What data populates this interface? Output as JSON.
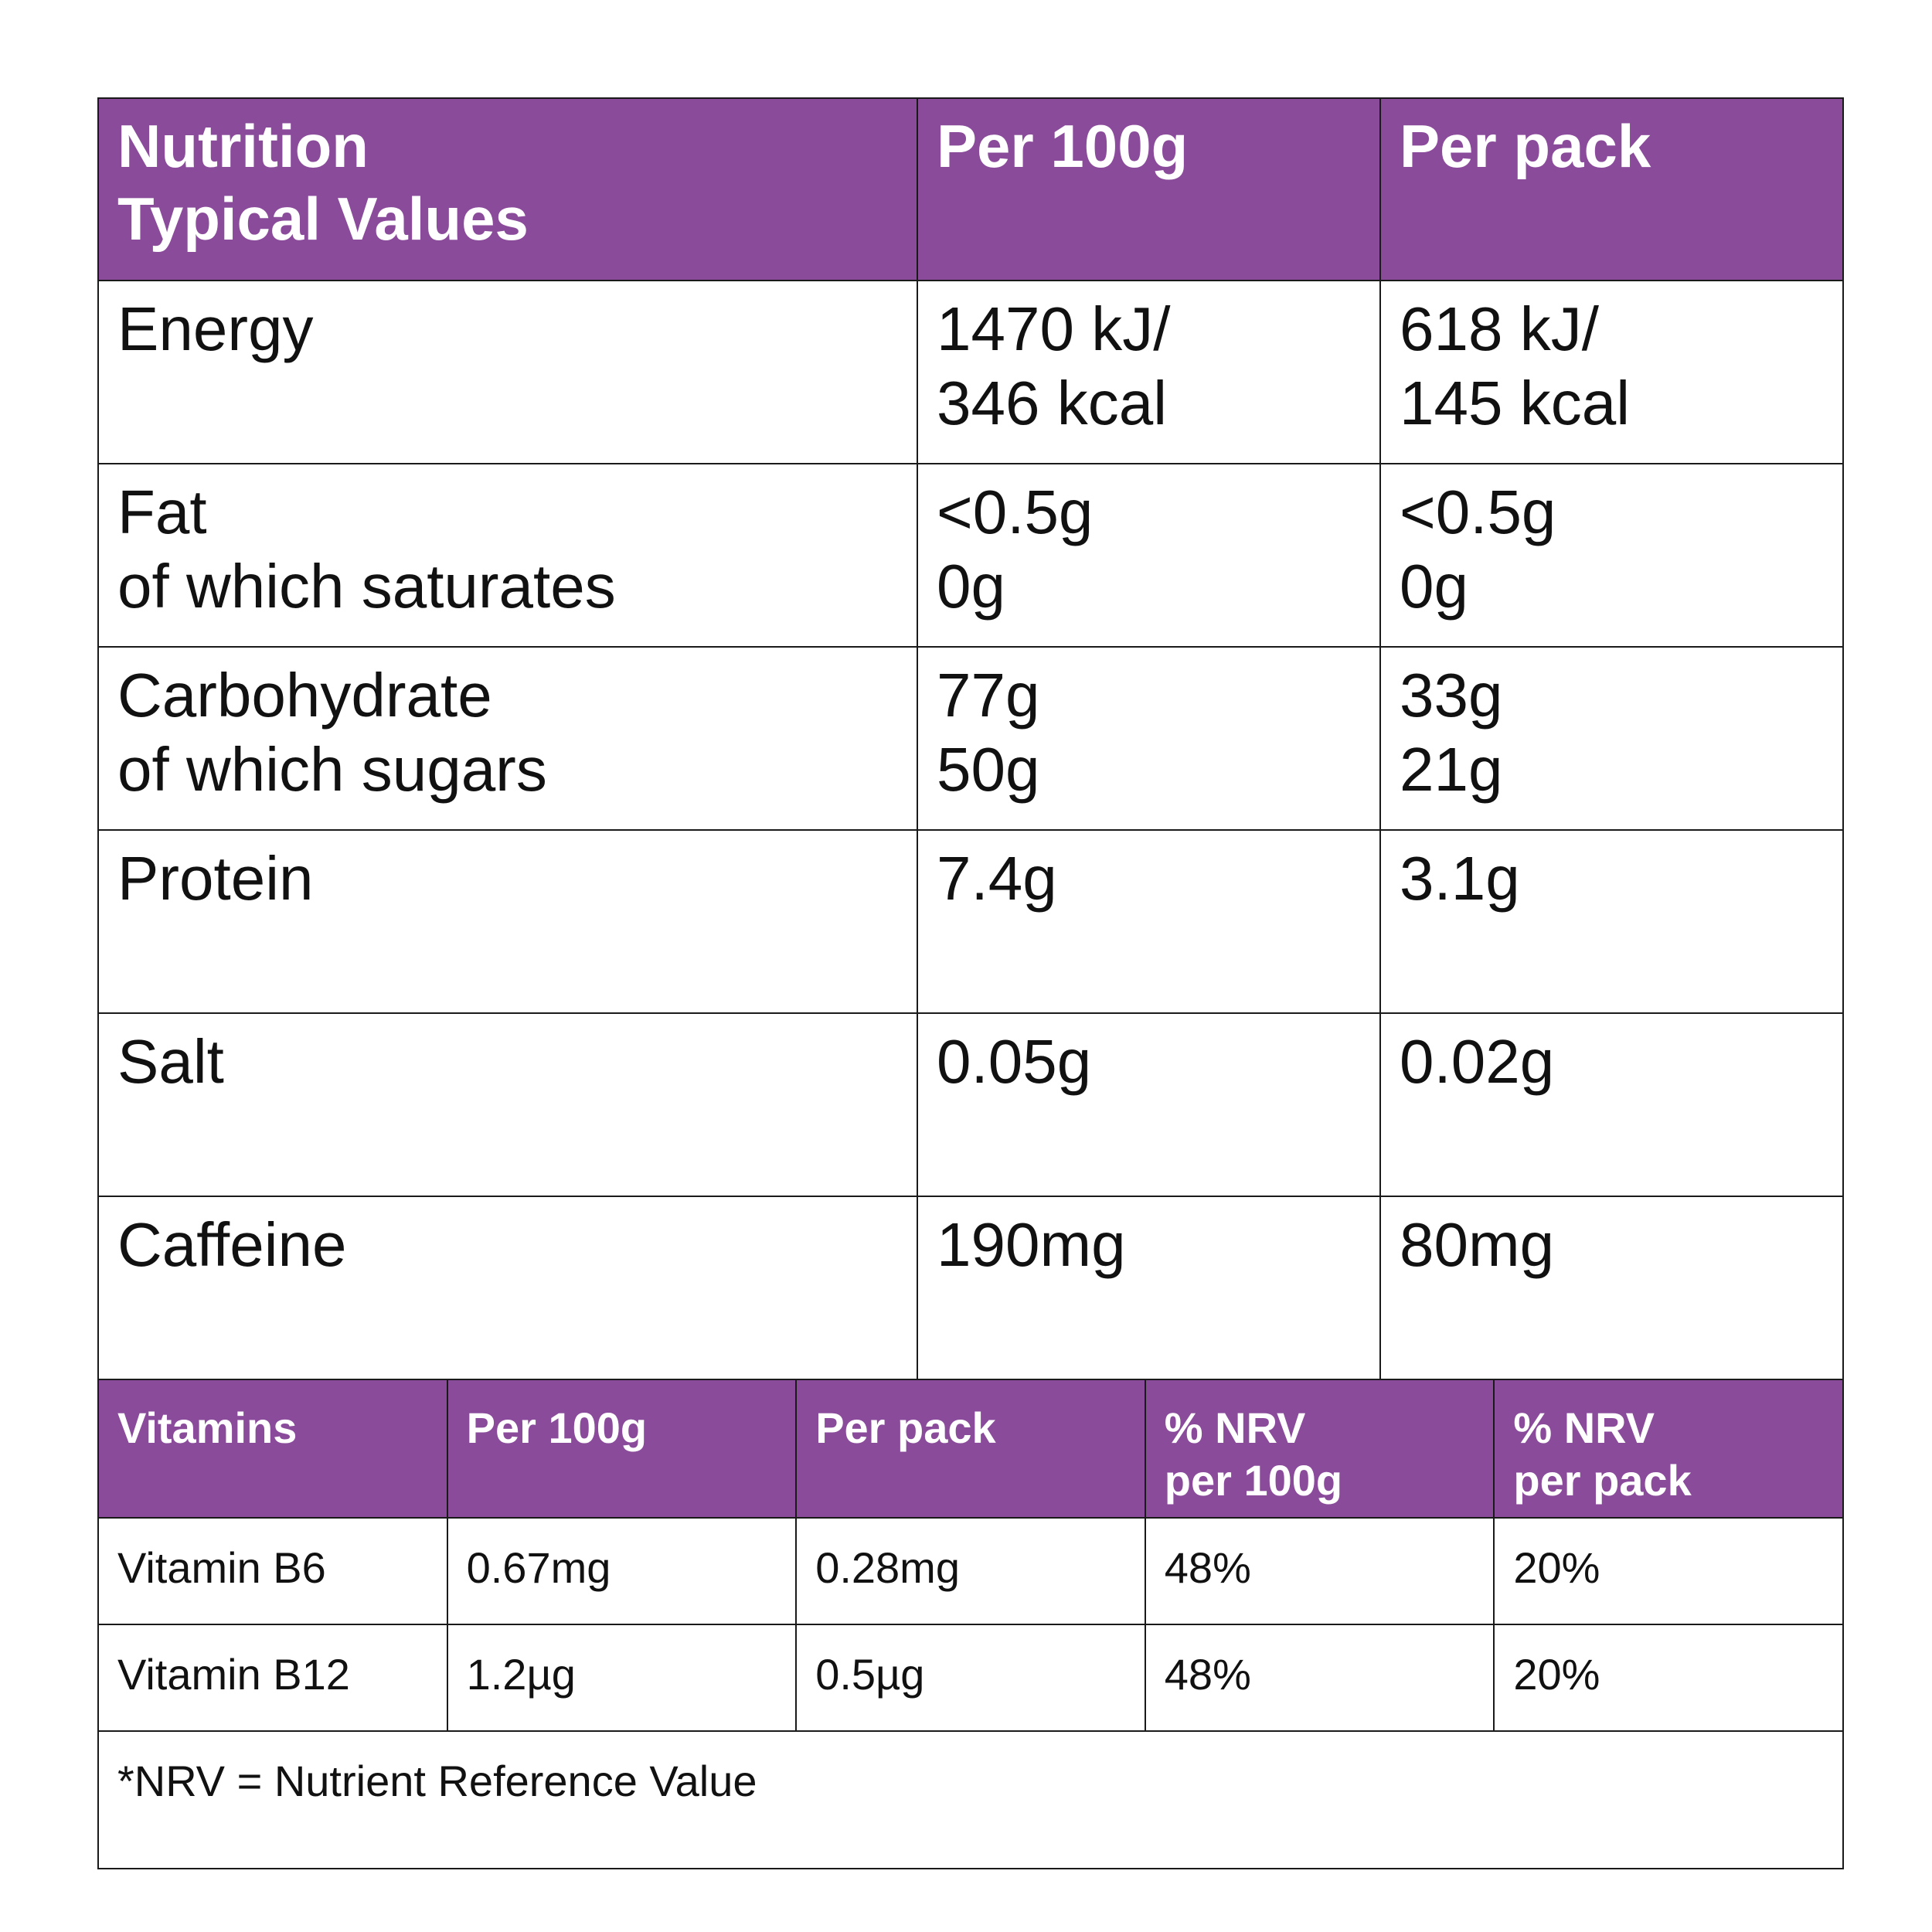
{
  "nutrition": {
    "header": {
      "label_line1": "Nutrition",
      "label_line2": "Typical Values",
      "per100g": "Per 100g",
      "perpack": "Per pack"
    },
    "rows": [
      {
        "label": [
          "Energy"
        ],
        "per100g": [
          "1470 kJ/",
          "346 kcal"
        ],
        "perpack": [
          "618 kJ/",
          "145 kcal"
        ]
      },
      {
        "label": [
          "Fat",
          "of which saturates"
        ],
        "per100g": [
          "<0.5g",
          "0g"
        ],
        "perpack": [
          "<0.5g",
          "0g"
        ]
      },
      {
        "label": [
          "Carbohydrate",
          "of which sugars"
        ],
        "per100g": [
          "77g",
          "50g"
        ],
        "perpack": [
          "33g",
          "21g"
        ]
      },
      {
        "label": [
          "Protein"
        ],
        "per100g": [
          "7.4g"
        ],
        "perpack": [
          "3.1g"
        ]
      },
      {
        "label": [
          "Salt"
        ],
        "per100g": [
          "0.05g"
        ],
        "perpack": [
          "0.02g"
        ]
      },
      {
        "label": [
          "Caffeine"
        ],
        "per100g": [
          "190mg"
        ],
        "perpack": [
          "80mg"
        ]
      }
    ]
  },
  "vitamins": {
    "header": {
      "name": "Vitamins",
      "per100g": "Per 100g",
      "perpack": "Per pack",
      "nrv100_line1": "% NRV",
      "nrv100_line2": "per 100g",
      "nrvpack_line1": "% NRV",
      "nrvpack_line2": "per pack"
    },
    "rows": [
      {
        "name": "Vitamin B6",
        "per100g": "0.67mg",
        "perpack": "0.28mg",
        "nrv100": "48%",
        "nrvpack": "20%"
      },
      {
        "name": "Vitamin B12",
        "per100g": "1.2µg",
        "perpack": "0.5µg",
        "nrv100": "48%",
        "nrvpack": "20%"
      }
    ],
    "footnote": "*NRV = Nutrient Reference Value"
  },
  "colors": {
    "header_bg": "#8a4b9b",
    "header_text": "#ffffff",
    "border": "#1a1a1a"
  }
}
